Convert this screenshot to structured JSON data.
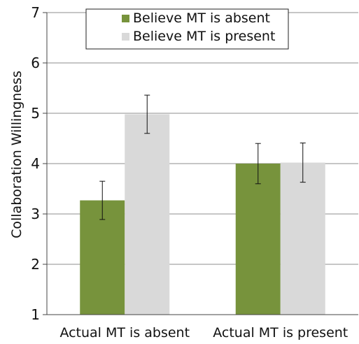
{
  "chart_data": {
    "type": "bar",
    "title": "",
    "xlabel": "",
    "ylabel": "Collaboration Willingness",
    "ylim": [
      1,
      7
    ],
    "yticks": [
      1,
      2,
      3,
      4,
      5,
      6,
      7
    ],
    "grid": true,
    "legend_position": "top-center",
    "categories": [
      "Actual MT is absent",
      "Actual MT is present"
    ],
    "series": [
      {
        "name": "Believe MT is absent",
        "color": "#77933c",
        "values": [
          3.27,
          4.0
        ],
        "error": [
          0.38,
          0.4
        ]
      },
      {
        "name": "Believe MT is present",
        "color": "#d9d9d9",
        "values": [
          4.98,
          4.02
        ],
        "error": [
          0.38,
          0.39
        ]
      }
    ]
  }
}
